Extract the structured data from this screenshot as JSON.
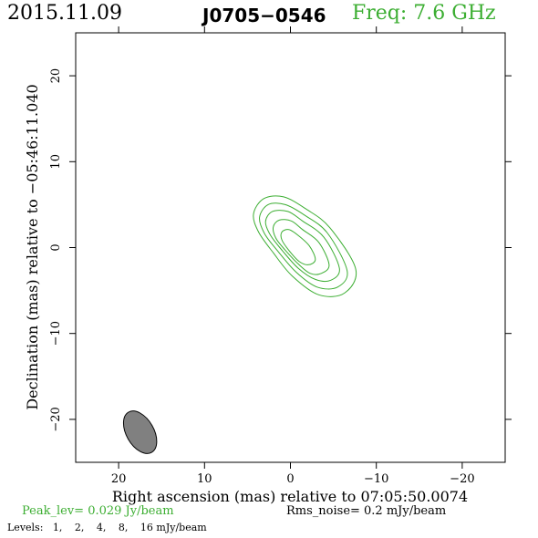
{
  "header": {
    "date": "2015.11.09",
    "source": "J0705−0546",
    "freq": "Freq: 7.6 GHz"
  },
  "footer": {
    "peak": "Peak_lev=  0.029 Jy/beam",
    "rms": "Rms_noise=   0.2 mJy/beam",
    "levels_label": "Levels:",
    "levels": [
      "1,",
      "2,",
      "4,",
      "8,",
      "16 mJy/beam"
    ]
  },
  "colors": {
    "contour": "#3cae32",
    "beam_fill": "#808080",
    "header_green": "#3cae32"
  },
  "chart_data": {
    "type": "contour",
    "xlabel": "Right ascension (mas) relative to 07:05:50.0074",
    "ylabel": "Declination (mas) relative to −05:46:11.040",
    "xlim": [
      25,
      -25
    ],
    "ylim": [
      -25,
      25
    ],
    "xticks": [
      20,
      10,
      0,
      -10,
      -20
    ],
    "yticks": [
      -20,
      -10,
      0,
      10,
      20
    ],
    "xtick_labels": [
      "20",
      "10",
      "0",
      "−10",
      "−20"
    ],
    "ytick_labels": [
      "−20",
      "−10",
      "0",
      "10",
      "20"
    ],
    "beam": {
      "x": 17.5,
      "y": -21.5,
      "major": 5.4,
      "minor": 3.2,
      "pa_deg": 30
    },
    "contours": [
      {
        "level": 1,
        "points": [
          [
            -7.6,
            -2.5
          ],
          [
            -6.3,
            -5.3
          ],
          [
            -3.3,
            -5.5
          ],
          [
            -0.2,
            -3.3
          ],
          [
            2.0,
            -0.6
          ],
          [
            3.7,
            1.8
          ],
          [
            4.3,
            3.9
          ],
          [
            3.1,
            5.7
          ],
          [
            0.8,
            5.9
          ],
          [
            -1.8,
            4.5
          ],
          [
            -4.6,
            2.3
          ]
        ]
      },
      {
        "level": 2,
        "points": [
          [
            -6.6,
            -2.7
          ],
          [
            -5.5,
            -4.6
          ],
          [
            -3.1,
            -4.6
          ],
          [
            -0.7,
            -2.9
          ],
          [
            1.4,
            -0.5
          ],
          [
            3.0,
            1.6
          ],
          [
            3.6,
            3.5
          ],
          [
            2.6,
            5.0
          ],
          [
            0.6,
            5.0
          ],
          [
            -1.6,
            3.8
          ],
          [
            -4.3,
            1.7
          ]
        ]
      },
      {
        "level": 4,
        "points": [
          [
            -5.7,
            -2.4
          ],
          [
            -4.7,
            -3.8
          ],
          [
            -2.9,
            -3.7
          ],
          [
            -0.9,
            -2.4
          ],
          [
            0.9,
            -0.4
          ],
          [
            2.3,
            1.4
          ],
          [
            2.9,
            3.0
          ],
          [
            2.1,
            4.2
          ],
          [
            0.3,
            4.2
          ],
          [
            -1.4,
            3.1
          ],
          [
            -3.9,
            1.2
          ]
        ]
      },
      {
        "level": 8,
        "points": [
          [
            -4.5,
            -2.0
          ],
          [
            -3.6,
            -3.0
          ],
          [
            -2.3,
            -3.0
          ],
          [
            -0.9,
            -1.9
          ],
          [
            0.6,
            -0.3
          ],
          [
            1.7,
            1.1
          ],
          [
            2.0,
            2.4
          ],
          [
            1.3,
            3.2
          ],
          [
            -0.1,
            3.1
          ],
          [
            -1.4,
            2.1
          ],
          [
            -3.3,
            0.6
          ]
        ]
      },
      {
        "level": 16,
        "points": [
          [
            -2.9,
            -1.4
          ],
          [
            -2.1,
            -2.0
          ],
          [
            -1.0,
            -1.6
          ],
          [
            0.2,
            -0.3
          ],
          [
            1.0,
            0.9
          ],
          [
            1.0,
            1.8
          ],
          [
            0.2,
            2.1
          ],
          [
            -0.8,
            1.5
          ],
          [
            -2.2,
            0.2
          ]
        ]
      }
    ]
  }
}
